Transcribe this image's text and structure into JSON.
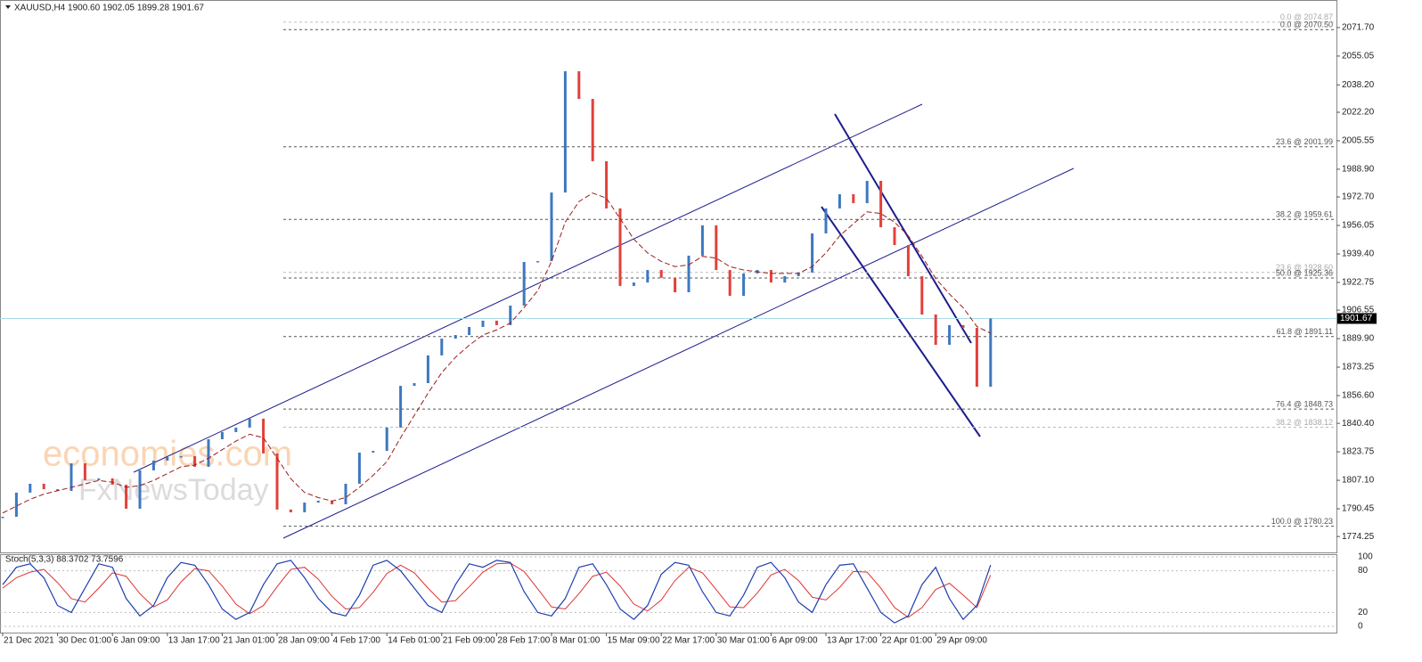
{
  "chart_data": {
    "type": "price",
    "title": "XAUUSD,H4  1900.60 1902.05 1899.28 1901.67",
    "indicator_title": "Stoch(5,3,3) 88.3702 73.7596",
    "watermark": [
      "economies.com",
      "FxNewsToday"
    ],
    "up_color": "#3d78c0",
    "down_color": "#e3403a",
    "ma_color": "#9b1c1c",
    "k_color": "#1f3fb0",
    "d_color": "#d33",
    "current": 1901.67,
    "current_label": "1901.67",
    "ylim": [
      1766,
      2080
    ],
    "yticks": [
      {
        "value": 2071.7,
        "label": "2071.70"
      },
      {
        "value": 2055.05,
        "label": "2055.05"
      },
      {
        "value": 2038.2,
        "label": "2038.20"
      },
      {
        "value": 2022.2,
        "label": "2022.20"
      },
      {
        "value": 2005.55,
        "label": "2005.55"
      },
      {
        "value": 1988.9,
        "label": "1988.90"
      },
      {
        "value": 1972.7,
        "label": "1972.70"
      },
      {
        "value": 1956.05,
        "label": "1956.05"
      },
      {
        "value": 1939.4,
        "label": "1939.40"
      },
      {
        "value": 1922.75,
        "label": "1922.75"
      },
      {
        "value": 1906.55,
        "label": "1906.55"
      },
      {
        "value": 1889.9,
        "label": "1889.90"
      },
      {
        "value": 1873.25,
        "label": "1873.25"
      },
      {
        "value": 1856.6,
        "label": "1856.60"
      },
      {
        "value": 1840.4,
        "label": "1840.40"
      },
      {
        "value": 1823.75,
        "label": "1823.75"
      },
      {
        "value": 1807.1,
        "label": "1807.10"
      },
      {
        "value": 1790.45,
        "label": "1790.45"
      },
      {
        "value": 1774.25,
        "label": "1774.25"
      }
    ],
    "levels": [
      {
        "label": "0.0 @ 2074.87",
        "value": 2074.87,
        "color": "#bbbbbb"
      },
      {
        "label": "0.0 @ 2070.50",
        "value": 2070.5,
        "color": "#555555"
      },
      {
        "label": "23.6 @ 2001.99",
        "value": 2001.99,
        "color": "#555555"
      },
      {
        "label": "38.2 @ 1959.61",
        "value": 1959.61,
        "color": "#555555"
      },
      {
        "label": "23.6 @ 1928.60",
        "value": 1928.6,
        "color": "#bbbbbb"
      },
      {
        "label": "50.0 @ 1925.36",
        "value": 1925.36,
        "color": "#555555"
      },
      {
        "label": "61.8 @ 1891.11",
        "value": 1891.11,
        "color": "#555555"
      },
      {
        "label": "76.4 @ 1848.73",
        "value": 1848.73,
        "color": "#555555"
      },
      {
        "label": "38.2 @ 1838.12",
        "value": 1838.12,
        "color": "#bbbbbb"
      },
      {
        "label": "100.0 @ 1780.23",
        "value": 1780.23,
        "color": "#555555"
      }
    ],
    "categories": [
      "21 Dec 2021",
      null,
      null,
      null,
      "30 Dec 01:00",
      null,
      null,
      null,
      "6 Jan 09:00",
      null,
      null,
      null,
      "13 Jan 17:00",
      null,
      null,
      null,
      "21 Jan 01:00",
      null,
      null,
      null,
      "28 Jan 09:00",
      null,
      null,
      null,
      "4 Feb 17:00",
      null,
      null,
      null,
      "14 Feb 01:00",
      null,
      null,
      null,
      "21 Feb 09:00",
      null,
      null,
      null,
      "28 Feb 17:00",
      null,
      null,
      null,
      "8 Mar 01:00",
      null,
      null,
      null,
      "15 Mar 09:00",
      null,
      null,
      null,
      "22 Mar 17:00",
      null,
      null,
      null,
      "30 Mar 01:00",
      null,
      null,
      null,
      "6 Apr 09:00",
      null,
      null,
      null,
      "13 Apr 17:00",
      null,
      null,
      null,
      "22 Apr 01:00",
      null,
      null,
      null,
      "29 Apr 09:00",
      null,
      null,
      null,
      null
    ],
    "closes": [
      1785.8,
      1799.9,
      1805.1,
      1801.9,
      1800.9,
      1817.0,
      1807.2,
      1808.2,
      1804.5,
      1790.5,
      1812.9,
      1818.6,
      1820.7,
      1821.2,
      1815.0,
      1831.1,
      1835.3,
      1837.9,
      1843.1,
      1822.8,
      1790.0,
      1788.4,
      1794.1,
      1795.2,
      1793.1,
      1805.1,
      1823.3,
      1824.3,
      1837.9,
      1862.3,
      1863.9,
      1880.1,
      1889.9,
      1892.0,
      1896.7,
      1900.4,
      1897.8,
      1909.2,
      1934.7,
      1935.2,
      1975.3,
      2046.2,
      2030.0,
      1993.6,
      1966.0,
      1920.7,
      1922.7,
      1930.0,
      1925.4,
      1917.0,
      1938.4,
      1956.1,
      1930.0,
      1914.9,
      1928.0,
      1930.0,
      1922.7,
      1926.4,
      1928.5,
      1951.4,
      1966.0,
      1974.3,
      1969.1,
      1982.1,
      1955.0,
      1944.6,
      1926.4,
      1904.0,
      1886.3,
      1897.8,
      1896.2,
      1861.8,
      1901.67
    ],
    "ma": [
      1788,
      1792,
      1796,
      1799,
      1801,
      1803,
      1805,
      1807,
      1806,
      1803,
      1804,
      1807,
      1811,
      1815,
      1816,
      1820,
      1825,
      1830,
      1834,
      1832,
      1820,
      1808,
      1800,
      1797,
      1795,
      1797,
      1803,
      1810,
      1818,
      1832,
      1845,
      1858,
      1870,
      1879,
      1886,
      1892,
      1895,
      1899,
      1908,
      1918,
      1935,
      1958,
      1970,
      1975,
      1972,
      1960,
      1948,
      1940,
      1935,
      1932,
      1933,
      1938,
      1937,
      1932,
      1930,
      1929,
      1928,
      1928,
      1928,
      1932,
      1940,
      1950,
      1957,
      1964,
      1963,
      1958,
      1950,
      1938,
      1925,
      1916,
      1908,
      1897,
      1893
    ],
    "stoch_ylim": [
      0,
      100
    ],
    "stoch_yticks": [
      0,
      20,
      80,
      100
    ],
    "stoch_k": [
      60,
      85,
      90,
      70,
      30,
      20,
      55,
      90,
      85,
      40,
      15,
      30,
      70,
      92,
      88,
      60,
      25,
      10,
      20,
      60,
      90,
      95,
      70,
      40,
      20,
      15,
      45,
      88,
      95,
      80,
      55,
      30,
      20,
      60,
      90,
      85,
      95,
      92,
      50,
      20,
      15,
      40,
      85,
      90,
      60,
      25,
      10,
      30,
      75,
      92,
      88,
      50,
      20,
      15,
      45,
      85,
      92,
      70,
      35,
      20,
      60,
      88,
      90,
      55,
      20,
      5,
      15,
      60,
      85,
      40,
      10,
      30,
      88.3702
    ],
    "stoch_d": [
      55,
      70,
      78,
      82,
      63,
      40,
      35,
      55,
      77,
      72,
      47,
      28,
      38,
      64,
      83,
      80,
      58,
      32,
      18,
      30,
      57,
      82,
      85,
      68,
      43,
      25,
      27,
      49,
      76,
      88,
      77,
      55,
      35,
      37,
      57,
      78,
      90,
      91,
      79,
      54,
      28,
      25,
      47,
      72,
      78,
      58,
      32,
      22,
      38,
      66,
      85,
      77,
      53,
      28,
      27,
      48,
      74,
      82,
      66,
      42,
      38,
      56,
      79,
      78,
      55,
      27,
      13,
      27,
      53,
      62,
      45,
      27,
      73.7596
    ]
  }
}
